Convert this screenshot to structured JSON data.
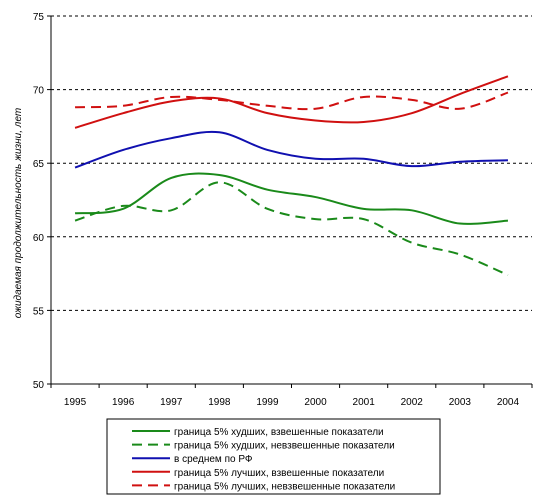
{
  "chart_data": {
    "type": "line",
    "title": "",
    "xlabel": "",
    "ylabel": "ожидаемая продолжительность жизни, лет",
    "ylim": [
      50,
      75
    ],
    "yticks": [
      50,
      55,
      60,
      65,
      70,
      75
    ],
    "grid": "horizontal dashed",
    "legend_position": "bottom",
    "categories": [
      "1995",
      "1996",
      "1997",
      "1998",
      "1999",
      "2000",
      "2001",
      "2002",
      "2003",
      "2004"
    ],
    "series": [
      {
        "name": "граница 5% худших, взвешенные показатели",
        "color": "#1a8a1a",
        "dash": "solid",
        "values": [
          61.6,
          61.9,
          64.0,
          64.2,
          63.2,
          62.7,
          61.9,
          61.8,
          60.9,
          61.1
        ]
      },
      {
        "name": "граница 5% худших, невзвешенные показатели",
        "color": "#1a8a1a",
        "dash": "dashed",
        "values": [
          61.1,
          62.1,
          61.8,
          63.7,
          61.9,
          61.2,
          61.2,
          59.6,
          58.8,
          57.4
        ]
      },
      {
        "name": "в среднем по РФ",
        "color": "#1010b0",
        "dash": "solid",
        "values": [
          64.7,
          65.9,
          66.7,
          67.1,
          65.9,
          65.3,
          65.3,
          64.8,
          65.1,
          65.2
        ]
      },
      {
        "name": "граница 5% лучших, взвешенные показатели",
        "color": "#d01010",
        "dash": "solid",
        "values": [
          67.4,
          68.4,
          69.2,
          69.4,
          68.4,
          67.9,
          67.8,
          68.4,
          69.7,
          70.9
        ]
      },
      {
        "name": "граница 5% лучших, невзвешенные показатели",
        "color": "#d01010",
        "dash": "dashed",
        "values": [
          68.8,
          68.9,
          69.5,
          69.3,
          68.9,
          68.7,
          69.5,
          69.3,
          68.7,
          69.8
        ]
      }
    ]
  }
}
